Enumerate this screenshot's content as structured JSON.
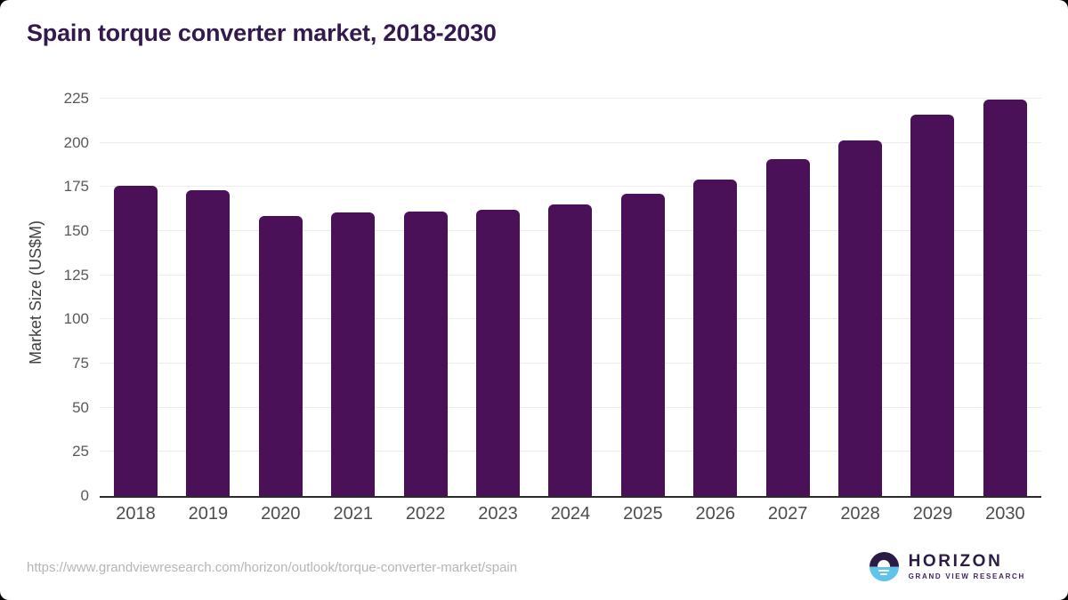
{
  "chart": {
    "title": "Spain torque converter market, 2018-2030",
    "y_axis_label": "Market Size (US$M)"
  },
  "chart_data": {
    "type": "bar",
    "title": "Spain torque converter market, 2018-2030",
    "categories": [
      "2018",
      "2019",
      "2020",
      "2021",
      "2022",
      "2023",
      "2024",
      "2025",
      "2026",
      "2027",
      "2028",
      "2029",
      "2030"
    ],
    "values": [
      175.5,
      173,
      158.5,
      160.5,
      161,
      162,
      165,
      171,
      179,
      191,
      201.5,
      216,
      224.5
    ],
    "xlabel": "",
    "ylabel": "Market Size (US$M)",
    "ylim": [
      0,
      225
    ],
    "yticks": [
      0,
      25,
      50,
      75,
      100,
      125,
      150,
      175,
      200,
      225
    ],
    "grid": true,
    "legend": false,
    "bar_color": "#4a1158"
  },
  "theme": {
    "bar_color": "#4a1158",
    "title_color": "#33194d",
    "gridline_color": "#ebebeb",
    "axis_line_color": "#2b2b2b",
    "logo_dark": "#2b1b45",
    "logo_blue": "#5fc3ea"
  },
  "footer": {
    "source_url": "https://www.grandviewresearch.com/horizon/outlook/torque-converter-market/spain",
    "logo": {
      "title": "HORIZON",
      "subtitle": "GRAND VIEW RESEARCH"
    }
  }
}
